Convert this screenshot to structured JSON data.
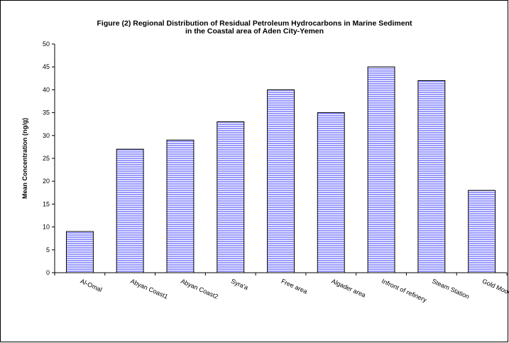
{
  "chart_data": {
    "type": "bar",
    "title_line1": "Figure (2) Regional Distribution of Residual Petroleum Hydrocarbons in  Marine Sediment",
    "title_line2": "in the Coastal area of Aden City-Yemen",
    "xlabel": "",
    "ylabel": "Mean Concentration (ng/g)",
    "ylim": [
      0,
      50
    ],
    "yticks": [
      0,
      5,
      10,
      15,
      20,
      25,
      30,
      35,
      40,
      45,
      50
    ],
    "categories": [
      "Al-Omal",
      "Abyan Coast1",
      "Abyan Coast2",
      "Syra'a",
      "Free area",
      "Algader area",
      "Infront of refinery",
      "Steam Station",
      "Gold Moor"
    ],
    "values": [
      9,
      27,
      29,
      33,
      40,
      35,
      45,
      42,
      18
    ],
    "bar_color": "#9999ff",
    "grid": false,
    "legend": "none"
  }
}
